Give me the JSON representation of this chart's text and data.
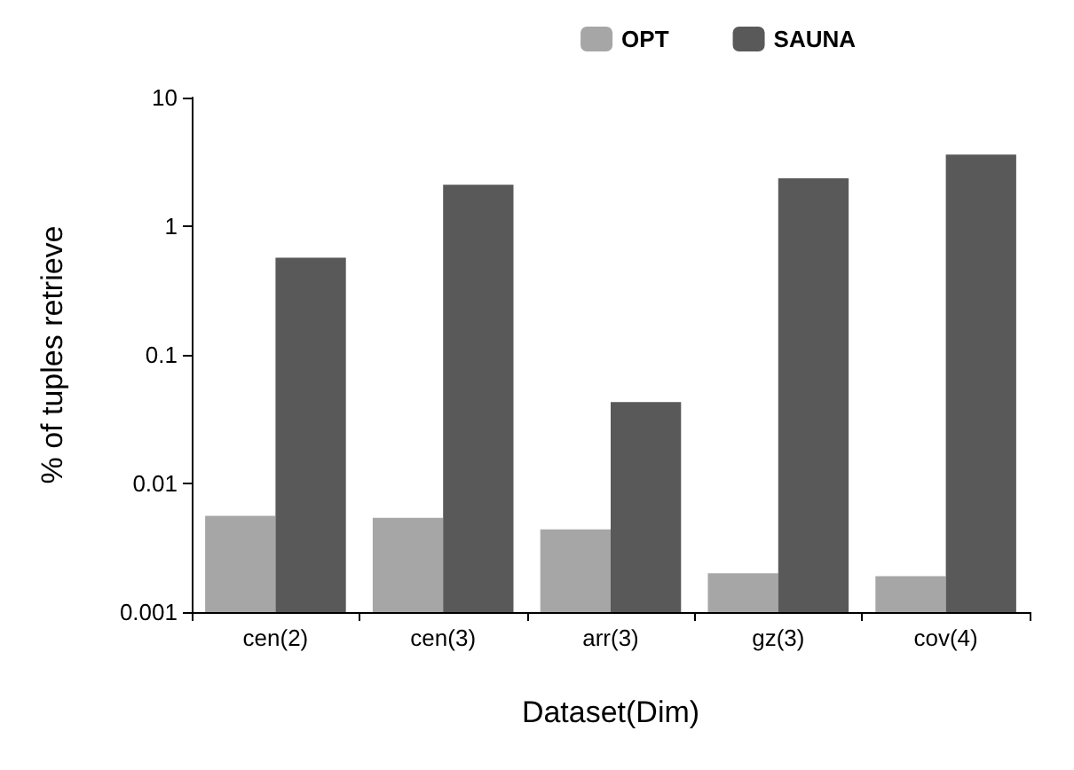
{
  "chart_data": {
    "type": "bar",
    "xlabel": "Dataset(Dim)",
    "ylabel": "% of tuples retrieve",
    "categories": [
      "cen(2)",
      "cen(3)",
      "arr(3)",
      "gz(3)",
      "cov(4)"
    ],
    "series": [
      {
        "name": "OPT",
        "color": "#a6a6a6",
        "values": [
          0.0056,
          0.0054,
          0.0044,
          0.002,
          0.0019
        ]
      },
      {
        "name": "SAUNA",
        "color": "#595959",
        "values": [
          0.57,
          2.1,
          0.043,
          2.36,
          3.6
        ]
      }
    ],
    "log": "y",
    "ylim": [
      0.001,
      10
    ],
    "yticks": [
      0.001,
      0.01,
      0.1,
      1,
      10
    ],
    "grid": false,
    "legend": "top right"
  }
}
